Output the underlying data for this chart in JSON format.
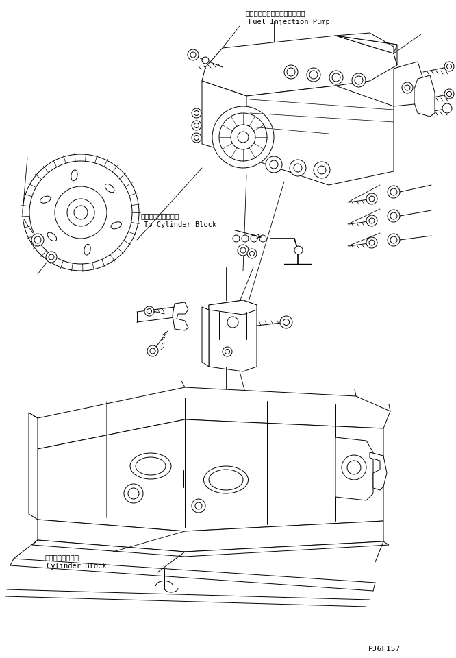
{
  "background_color": "#ffffff",
  "line_color": "#000000",
  "fig_width": 6.66,
  "fig_height": 9.6,
  "dpi": 100,
  "label_fuel_jp": "フェルインジェクションポンプ",
  "label_fuel_en": "Fuel Injection Pump",
  "label_cylinder_to_jp": "シリンダブロックへ",
  "label_cylinder_to_en": "To Cylinder Block",
  "label_cylinder_jp": "シリンダブロック",
  "label_cylinder_en": "Cylinder Block",
  "label_code": "PJ6F157",
  "font_size_label": 7.5,
  "font_size_code": 8
}
